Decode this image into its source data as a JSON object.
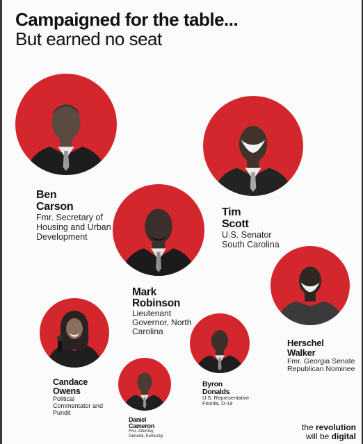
{
  "headline": {
    "line1": "Campaigned for the table...",
    "line2": "But earned no seat"
  },
  "people": {
    "carson": {
      "name1": "Ben",
      "name2": "Carson",
      "role": "Fmr. Secretary of Housing and Urban Development",
      "photo_icon": "portrait-man-suit"
    },
    "scott": {
      "name1": "Tim",
      "name2": "Scott",
      "role": "U.S. Senator South Carolina",
      "photo_icon": "portrait-man-suit"
    },
    "robinson": {
      "name1": "Mark",
      "name2": "Robinson",
      "role": "Lieutenant Governor, North Carolina",
      "photo_icon": "portrait-man-suit"
    },
    "walker": {
      "name1": "Herschel",
      "name2": "Walker",
      "role": "Fmr. Georgia Senate Republican Nominee",
      "photo_icon": "portrait-man-casual"
    },
    "owens": {
      "name1": "Candace",
      "name2": "Owens",
      "role": "Political Commentator and Pundit",
      "photo_icon": "portrait-woman-microphone"
    },
    "donalds": {
      "name1": "Byron",
      "name2": "Donalds",
      "role": "U.S. Representative Florida, D-19",
      "photo_icon": "portrait-man-suit"
    },
    "cameron": {
      "name1": "Daniel",
      "name2": "Cameron",
      "role": "Fmr. Attorney General, Kentucky",
      "photo_icon": "portrait-man-suit"
    }
  },
  "footer": {
    "pre": "the ",
    "brand": "revolution",
    "line2_pre": "will be ",
    "line2_brand": "digital"
  },
  "colors": {
    "accent": "#d4272d",
    "text": "#111111"
  }
}
